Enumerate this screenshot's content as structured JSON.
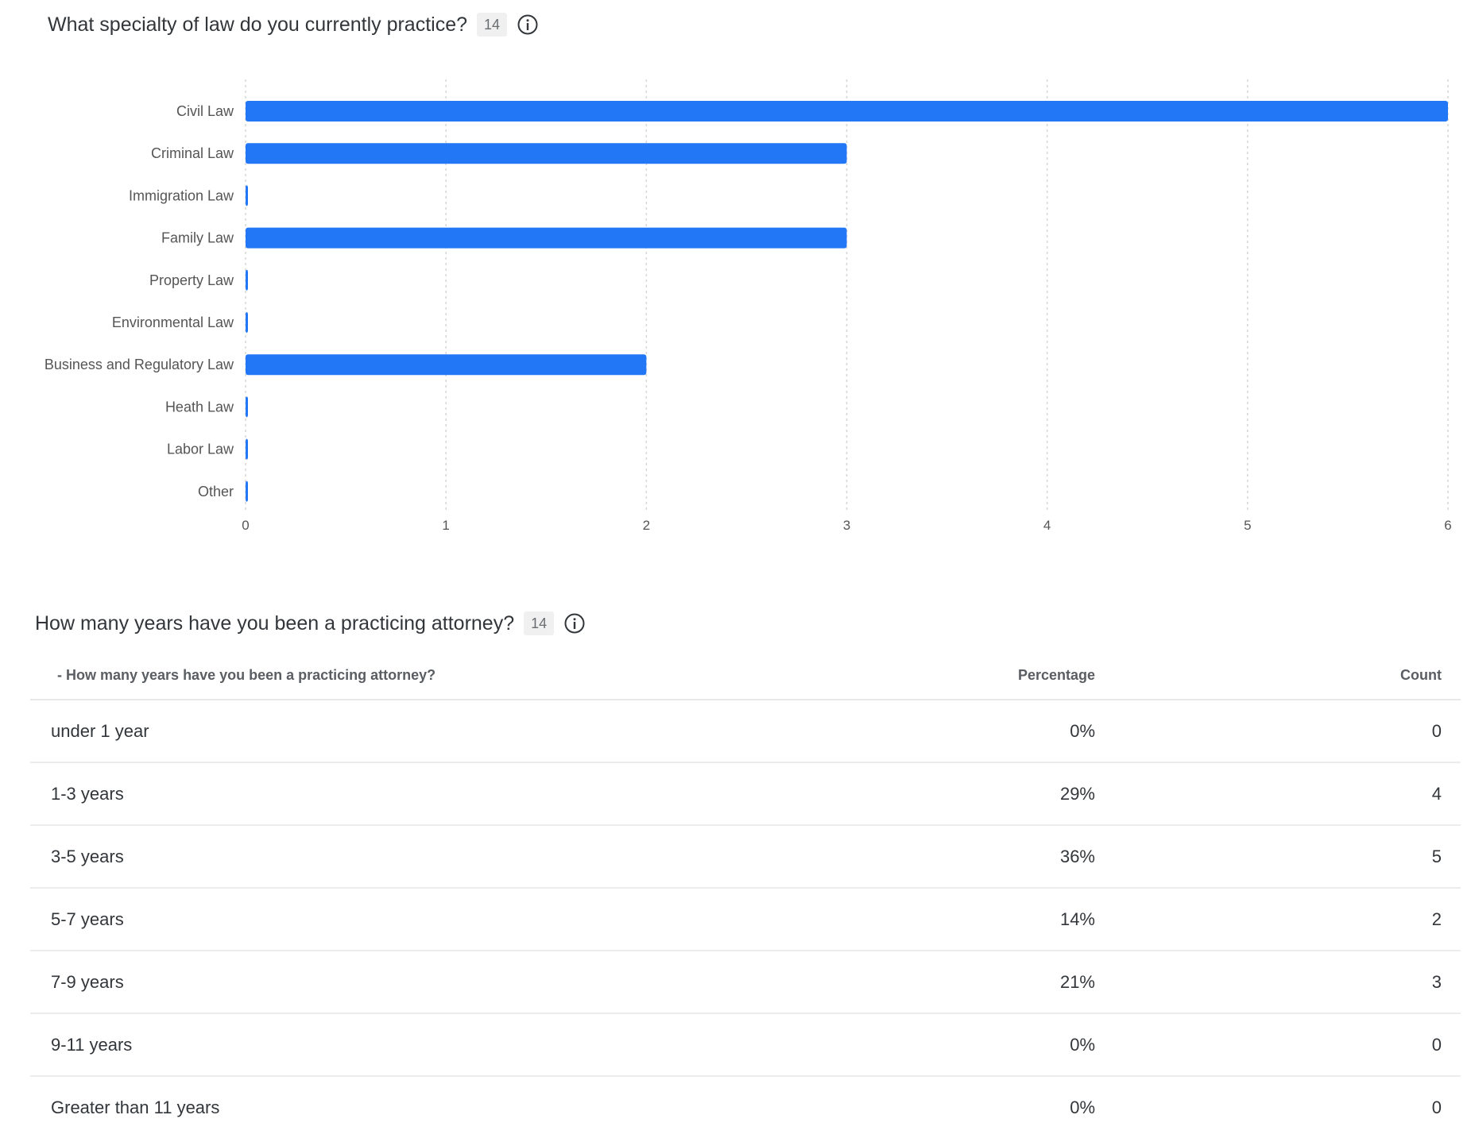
{
  "q1": {
    "title": "What specialty of law do you currently practice?",
    "count": "14",
    "info_icon": "info-icon"
  },
  "chart_data": {
    "type": "bar",
    "orientation": "horizontal",
    "categories": [
      "Civil Law",
      "Criminal Law",
      "Immigration Law",
      "Family Law",
      "Property Law",
      "Environmental Law",
      "Business and Regulatory Law",
      "Heath Law",
      "Labor Law",
      "Other"
    ],
    "values": [
      6,
      3,
      0,
      3,
      0,
      0,
      2,
      0,
      0,
      0
    ],
    "xlim": [
      0,
      6
    ],
    "xticks": [
      "0",
      "1",
      "2",
      "3",
      "4",
      "5",
      "6"
    ],
    "grid": true,
    "bar_color": "#2277f7",
    "grid_color": "#d6d6d6"
  },
  "q2": {
    "title": "How many years have you been a practicing attorney?",
    "count": "14",
    "info_icon": "info-icon",
    "columns": [
      "- How many years have you been a practicing attorney?",
      "Percentage",
      "Count"
    ],
    "rows": [
      {
        "label": "under 1 year",
        "percentage": "0%",
        "count": "0"
      },
      {
        "label": "1-3 years",
        "percentage": "29%",
        "count": "4"
      },
      {
        "label": "3-5 years",
        "percentage": "36%",
        "count": "5"
      },
      {
        "label": "5-7 years",
        "percentage": "14%",
        "count": "2"
      },
      {
        "label": "7-9 years",
        "percentage": "21%",
        "count": "3"
      },
      {
        "label": "9-11 years",
        "percentage": "0%",
        "count": "0"
      },
      {
        "label": "Greater than 11 years",
        "percentage": "0%",
        "count": "0"
      }
    ]
  }
}
